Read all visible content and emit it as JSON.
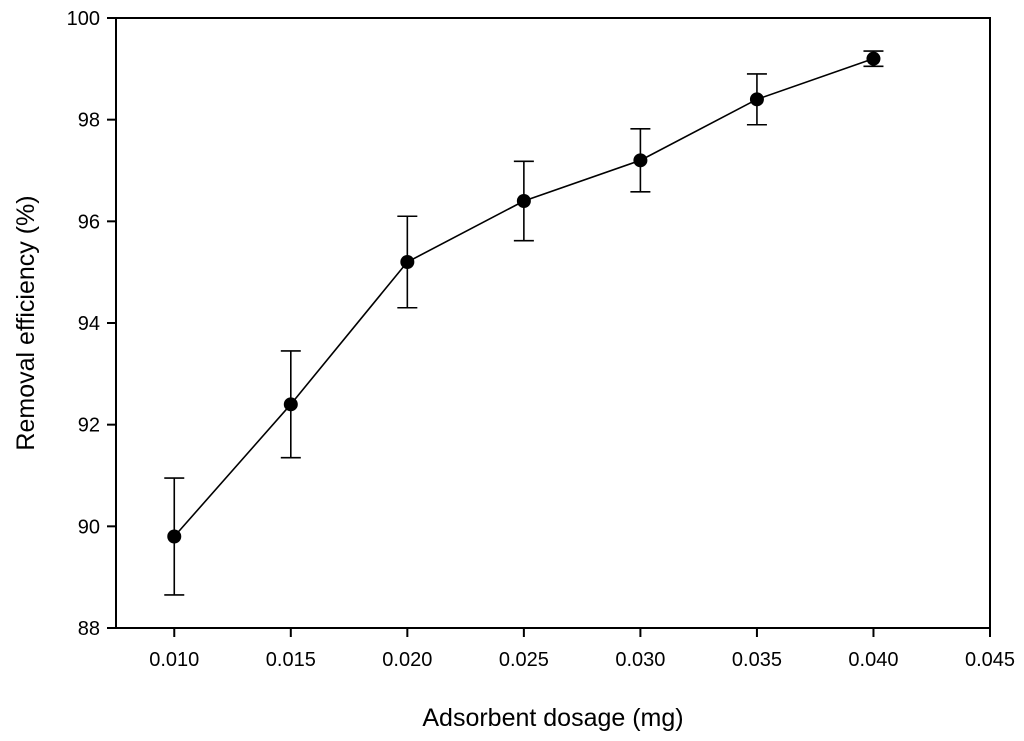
{
  "chart_data": {
    "type": "line",
    "title": "",
    "xlabel": "Adsorbent dosage (mg)",
    "ylabel": "Removal efficiency (%)",
    "xlim": [
      0.0075,
      0.045
    ],
    "ylim": [
      88,
      100
    ],
    "xticks": [
      "0.010",
      "0.015",
      "0.020",
      "0.025",
      "0.030",
      "0.035",
      "0.040",
      "0.045"
    ],
    "yticks": [
      "88",
      "90",
      "92",
      "94",
      "96",
      "98",
      "100"
    ],
    "grid": false,
    "series": [
      {
        "name": "Removal efficiency",
        "marker": "filled-circle",
        "x": [
          0.01,
          0.015,
          0.02,
          0.025,
          0.03,
          0.035,
          0.04
        ],
        "y": [
          89.8,
          92.4,
          95.2,
          96.4,
          97.2,
          98.4,
          99.2
        ],
        "error": [
          1.15,
          1.05,
          0.9,
          0.78,
          0.62,
          0.5,
          0.15
        ]
      }
    ]
  }
}
